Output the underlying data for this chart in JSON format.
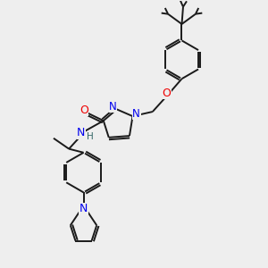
{
  "bg_color": "#eeeeee",
  "bond_color": "#1a1a1a",
  "N_color": "#0000ee",
  "O_color": "#ee0000",
  "H_color": "#336666",
  "bond_lw": 1.4,
  "dbl_sep": 0.08,
  "figsize": [
    3.0,
    3.0
  ],
  "dpi": 100,
  "xlim": [
    0,
    10
  ],
  "ylim": [
    0,
    10
  ]
}
